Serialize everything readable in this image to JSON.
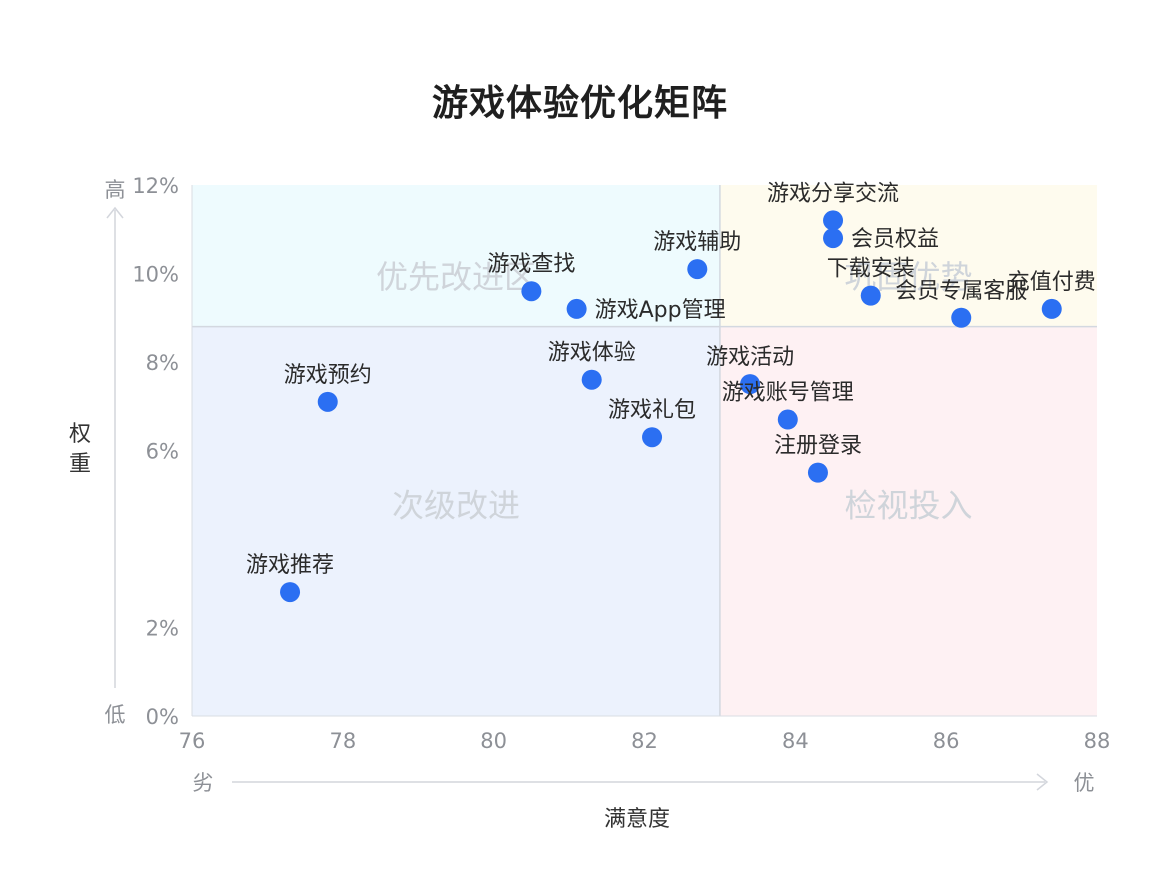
{
  "title": "游戏体验优化矩阵",
  "chart_data": {
    "type": "scatter",
    "title": "游戏体验优化矩阵",
    "xlabel": "满意度",
    "ylabel": "权重",
    "x_axis": {
      "min": 76,
      "max": 88,
      "ticks": [
        76,
        78,
        80,
        82,
        84,
        86,
        88
      ],
      "low_label": "劣",
      "high_label": "优"
    },
    "y_axis": {
      "min": 0,
      "max": 12,
      "ticks": [
        0,
        2,
        4,
        6,
        8,
        10,
        12
      ],
      "tick_labels": [
        "0%",
        "2%",
        "",
        "6%",
        "8%",
        "10%",
        "12%"
      ],
      "low_label": "低",
      "high_label": "高",
      "unit": "%"
    },
    "divider": {
      "x": 83,
      "y": 8.8
    },
    "quadrants": [
      {
        "name": "优先改进区",
        "position": "top-left",
        "color": "#eefbfe"
      },
      {
        "name": "巩固优势",
        "position": "top-right",
        "color": "#fefbee"
      },
      {
        "name": "次级改进",
        "position": "bottom-left",
        "color": "#ecf2fd"
      },
      {
        "name": "检视投入",
        "position": "bottom-right",
        "color": "#fef1f3"
      }
    ],
    "point_color": "#2b6ff2",
    "points": [
      {
        "label": "游戏分享交流",
        "x": 84.5,
        "y": 11.2,
        "label_pos": "above"
      },
      {
        "label": "会员权益",
        "x": 84.5,
        "y": 10.8,
        "label_pos": "right"
      },
      {
        "label": "游戏辅助",
        "x": 82.7,
        "y": 10.1,
        "label_pos": "above"
      },
      {
        "label": "游戏查找",
        "x": 80.5,
        "y": 9.6,
        "label_pos": "above"
      },
      {
        "label": "下载安装",
        "x": 85.0,
        "y": 9.5,
        "label_pos": "above"
      },
      {
        "label": "会员专属客服",
        "x": 86.2,
        "y": 9.0,
        "label_pos": "above"
      },
      {
        "label": "充值付费",
        "x": 87.4,
        "y": 9.2,
        "label_pos": "above"
      },
      {
        "label": "游戏App管理",
        "x": 81.1,
        "y": 9.2,
        "label_pos": "right"
      },
      {
        "label": "游戏体验",
        "x": 81.3,
        "y": 7.6,
        "label_pos": "above"
      },
      {
        "label": "游戏活动",
        "x": 83.4,
        "y": 7.5,
        "label_pos": "above"
      },
      {
        "label": "游戏预约",
        "x": 77.8,
        "y": 7.1,
        "label_pos": "above"
      },
      {
        "label": "游戏账号管理",
        "x": 83.9,
        "y": 6.7,
        "label_pos": "above"
      },
      {
        "label": "游戏礼包",
        "x": 82.1,
        "y": 6.3,
        "label_pos": "above"
      },
      {
        "label": "注册登录",
        "x": 84.3,
        "y": 5.5,
        "label_pos": "above"
      },
      {
        "label": "游戏推荐",
        "x": 77.3,
        "y": 2.8,
        "label_pos": "above"
      }
    ]
  }
}
